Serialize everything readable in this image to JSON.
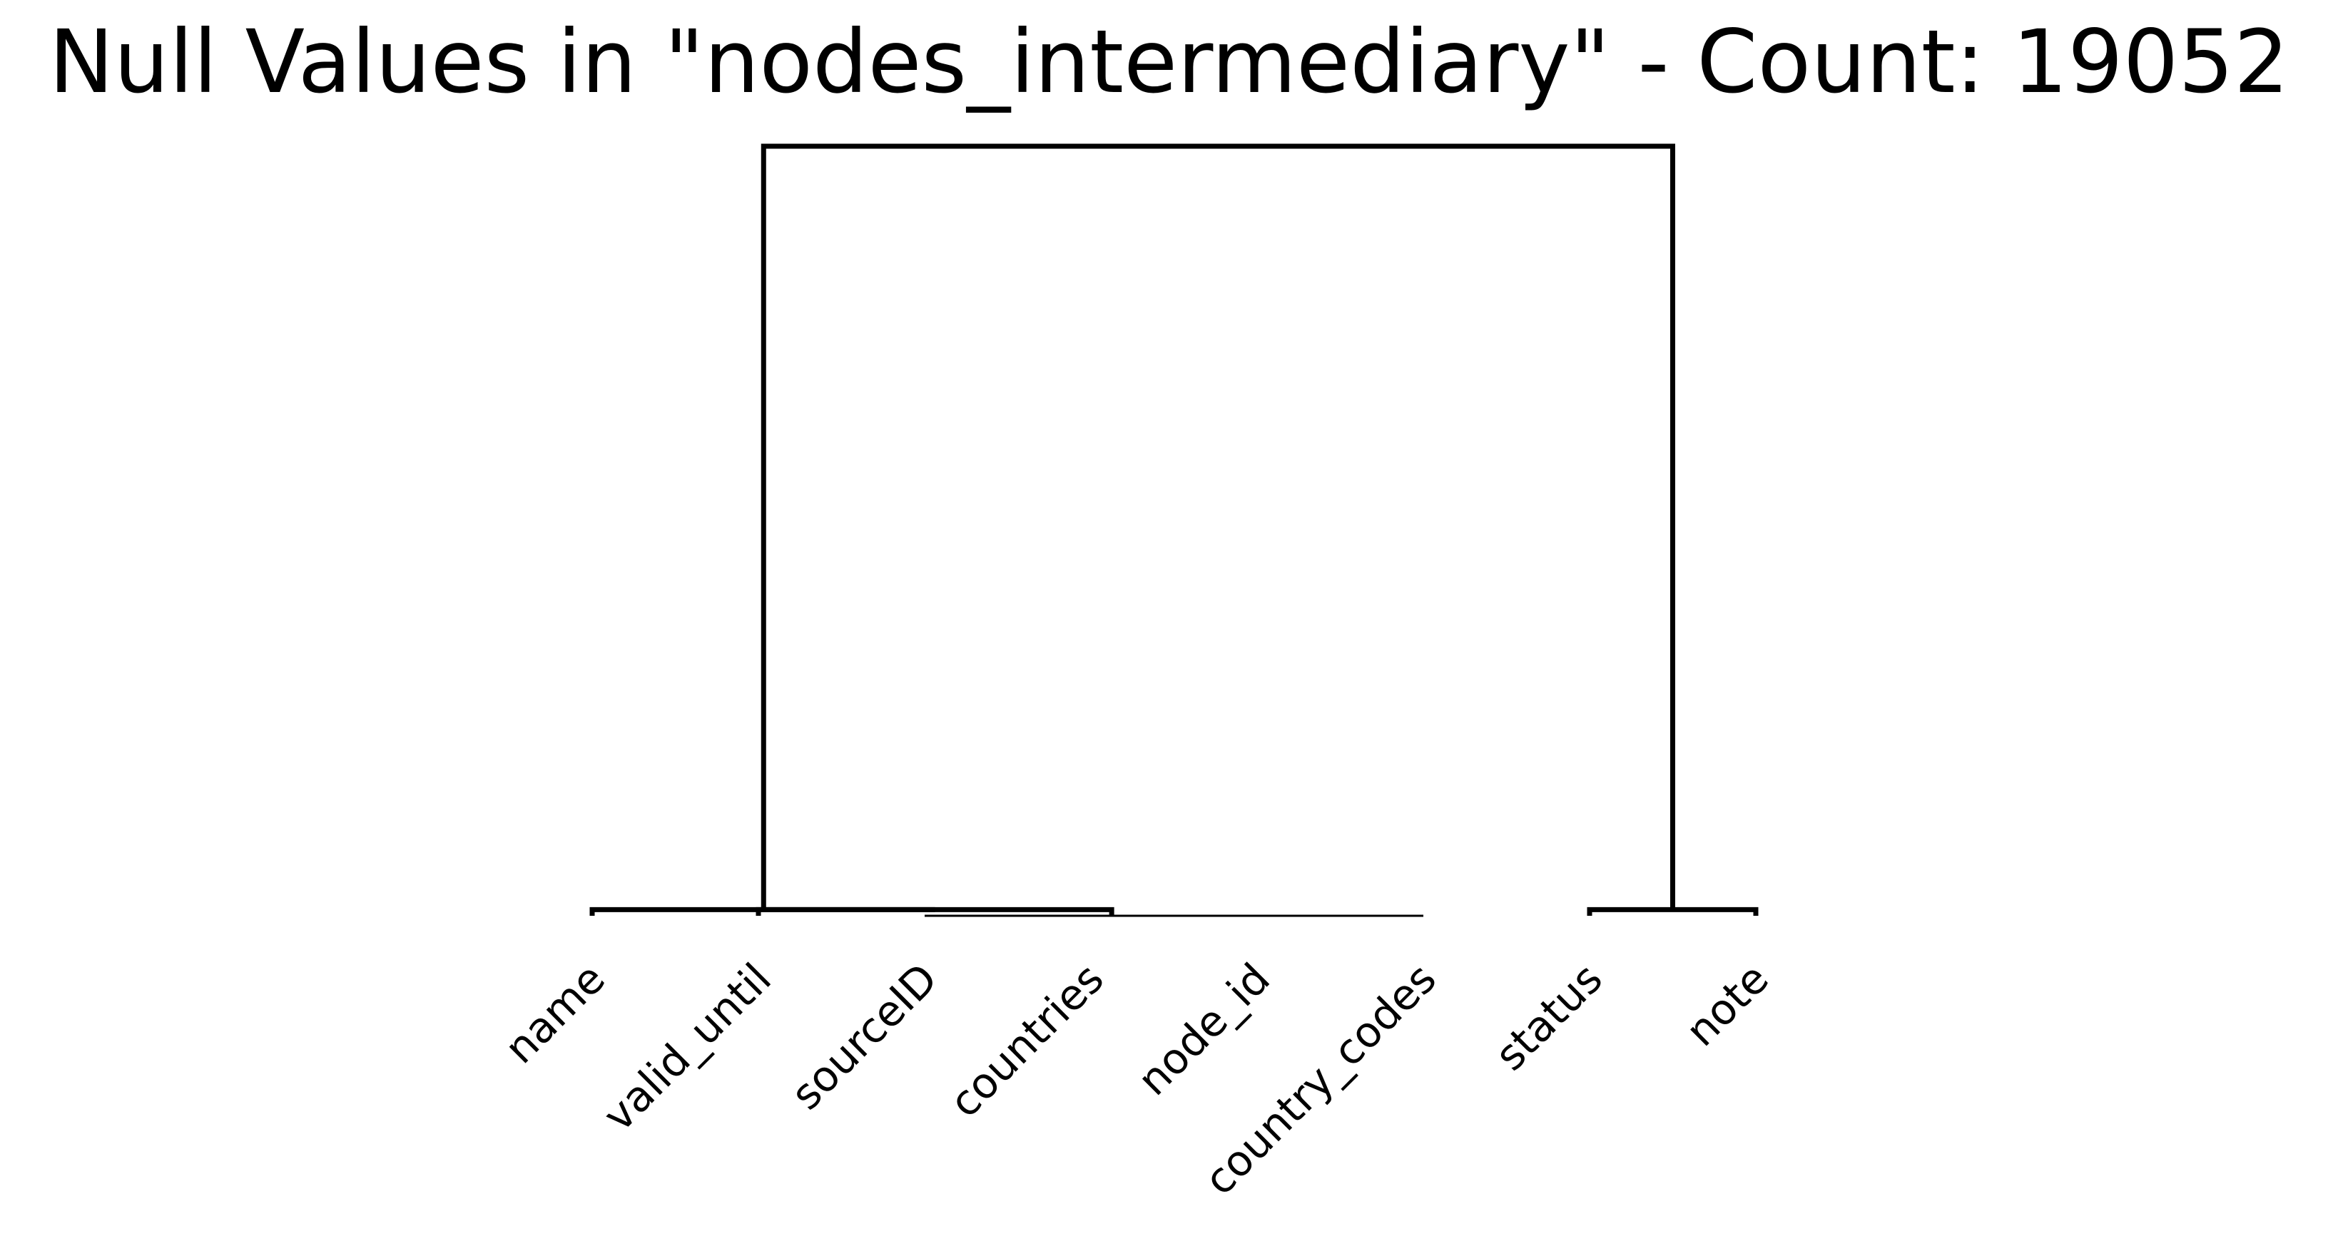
{
  "chart_data": {
    "type": "dendrogram",
    "title": "Null Values in \"nodes_intermediary\" - Count: 19052",
    "leaves": [
      "name",
      "valid_until",
      "sourceID",
      "countries",
      "node_id",
      "country_codes",
      "status",
      "note"
    ],
    "merges": [
      {
        "left": "countries",
        "right": "node_id",
        "height": 0.0
      },
      {
        "left": [
          "countries",
          "node_id"
        ],
        "right": "country_codes",
        "height": 0.0
      },
      {
        "left": "sourceID",
        "right": [
          "countries",
          "node_id",
          "country_codes"
        ],
        "height": 0.0
      },
      {
        "left": "valid_until",
        "right": [
          "sourceID",
          "countries",
          "node_id",
          "country_codes"
        ],
        "height": 0.008
      },
      {
        "left": "name",
        "right": [
          "valid_until",
          "sourceID",
          "countries",
          "node_id",
          "country_codes"
        ],
        "height": 0.008
      },
      {
        "left": "status",
        "right": "note",
        "height": 0.008
      },
      {
        "left": [
          "name",
          "valid_until",
          "sourceID",
          "countries",
          "node_id",
          "country_codes"
        ],
        "right": [
          "status",
          "note"
        ],
        "height": 1.0
      }
    ],
    "ylim": [
      0,
      1.0
    ],
    "axes_visible": false,
    "grid": false,
    "line_color": "#000000"
  }
}
